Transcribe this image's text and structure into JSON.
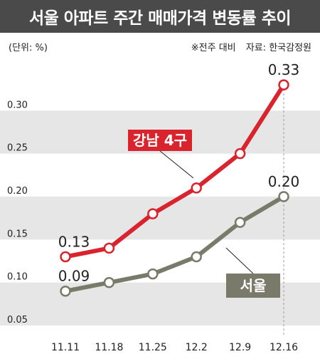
{
  "title": "서울 아파트 주간 매매가격 변동률 추이",
  "unit_label": "(단위: %)",
  "note": "※전주 대비",
  "source": "자료: 한국감정원",
  "colors": {
    "title_bg": "#4a4a4a",
    "band": "#e6e6e6",
    "red": "#d9232d",
    "gray": "#7a7a6a",
    "dashed": "#999999"
  },
  "chart_data": {
    "type": "line",
    "categories": [
      "11.11",
      "11.18",
      "11.25",
      "12.2",
      "12.9",
      "12.16"
    ],
    "ylim": [
      0.05,
      0.35
    ],
    "yticks": [
      "0.05",
      "0.10",
      "0.15",
      "0.20",
      "0.25",
      "0.30"
    ],
    "xlabel": "",
    "ylabel": "",
    "grid": "alternating horizontal bands",
    "series": [
      {
        "name": "강남 4구",
        "color": "#d9232d",
        "values": [
          0.13,
          0.14,
          0.18,
          0.21,
          0.25,
          0.33
        ],
        "value_labels": {
          "0": "0.13",
          "5": "0.33"
        }
      },
      {
        "name": "서울",
        "color": "#7a7a6a",
        "values": [
          0.09,
          0.1,
          0.11,
          0.13,
          0.17,
          0.2
        ],
        "value_labels": {
          "0": "0.09",
          "5": "0.20"
        }
      }
    ]
  }
}
